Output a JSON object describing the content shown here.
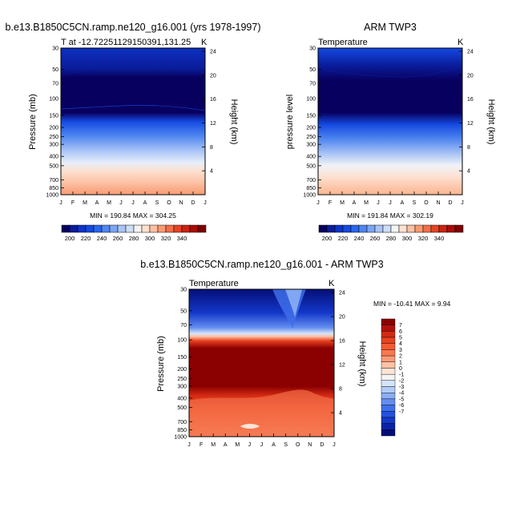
{
  "chart_data": [
    {
      "type": "heatmap",
      "title": "b.e13.B1850C5CN.ramp.ne120_g16.001 (yrs 1978-1997)",
      "subtitle": "T at -12.72251129150391,131.25",
      "units": "K",
      "xlabel": "",
      "ylabel": "Pressure (mb)",
      "ylabel_right": "Height (km)",
      "x_ticks": [
        "J",
        "F",
        "M",
        "A",
        "M",
        "J",
        "J",
        "A",
        "S",
        "O",
        "N",
        "D",
        "J"
      ],
      "y_ticks": [
        30,
        50,
        70,
        100,
        150,
        200,
        250,
        300,
        400,
        500,
        700,
        850,
        1000
      ],
      "height_ticks": [
        24,
        20,
        16,
        12,
        8,
        4
      ],
      "stats": "MIN = 190.84   MAX = 304.25",
      "min": 190.84,
      "max": 304.25,
      "ylim": [
        1000,
        30
      ]
    },
    {
      "type": "heatmap",
      "title": "ARM TWP3",
      "subtitle": "Temperature",
      "units": "K",
      "xlabel": "",
      "ylabel": "pressure level",
      "ylabel_right": "Height (km)",
      "x_ticks": [
        "J",
        "F",
        "M",
        "A",
        "M",
        "J",
        "J",
        "A",
        "S",
        "O",
        "N",
        "D",
        "J"
      ],
      "y_ticks": [
        30,
        50,
        70,
        100,
        150,
        200,
        250,
        300,
        400,
        500,
        700,
        850,
        1000
      ],
      "height_ticks": [
        24,
        20,
        16,
        12,
        8,
        4
      ],
      "stats": "MIN = 191.84   MAX = 302.19",
      "min": 191.84,
      "max": 302.19,
      "ylim": [
        1000,
        30
      ]
    },
    {
      "type": "heatmap",
      "title": "b.e13.B1850C5CN.ramp.ne120_g16.001 - ARM TWP3",
      "subtitle": "Temperature",
      "units": "K",
      "xlabel": "",
      "ylabel": "Pressure (mb)",
      "ylabel_right": "Height (km)",
      "x_ticks": [
        "J",
        "F",
        "M",
        "A",
        "M",
        "J",
        "J",
        "A",
        "S",
        "O",
        "N",
        "D",
        "J"
      ],
      "y_ticks": [
        30,
        50,
        70,
        100,
        150,
        200,
        250,
        300,
        400,
        500,
        700,
        850,
        1000
      ],
      "height_ticks": [
        24,
        20,
        16,
        12,
        8,
        4
      ],
      "stats": "MIN = -10.41  MAX =   9.94",
      "min": -10.41,
      "max": 9.94,
      "ylim": [
        1000,
        30
      ]
    }
  ],
  "colorbar_abs": {
    "labels": [
      200,
      220,
      240,
      260,
      280,
      300,
      320,
      340
    ],
    "colors": [
      "#08005f",
      "#0a1c9a",
      "#0d33c8",
      "#1449e0",
      "#2a66ec",
      "#4f86f0",
      "#7da5f3",
      "#a9c4f5",
      "#cfdef7",
      "#f4f4f4",
      "#fde0cf",
      "#fcc0a2",
      "#f99a72",
      "#f26e47",
      "#e44424",
      "#cb2412",
      "#a80d09",
      "#7e0000"
    ]
  },
  "colorbar_diff": {
    "labels": [
      7,
      6,
      5,
      4,
      3,
      2,
      1,
      0,
      -1,
      -2,
      -3,
      -4,
      -5,
      -6,
      -7
    ],
    "colors": [
      "#8b0000",
      "#b3100b",
      "#d22a14",
      "#e8411f",
      "#f45b32",
      "#f9784f",
      "#fb9a78",
      "#fdc2a6",
      "#fee4d5",
      "#f4f4f4",
      "#d6e4fa",
      "#b1cbf7",
      "#8aaef4",
      "#638ef0",
      "#3f6fea",
      "#2452df",
      "#1438c9",
      "#0a23a6",
      "#040e78"
    ]
  }
}
